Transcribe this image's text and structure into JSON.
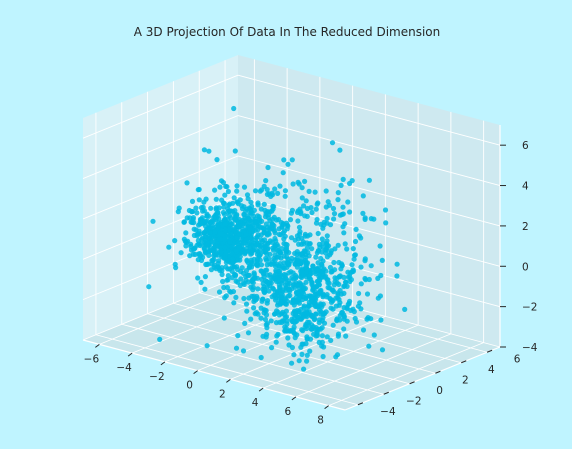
{
  "chart_data": {
    "type": "scatter",
    "projection": "3d",
    "title": "A 3D Projection Of Data In The Reduced Dimension",
    "xlabel": "",
    "ylabel": "",
    "zlabel": "",
    "xlim": [
      -7,
      9
    ],
    "ylim": [
      -5,
      7
    ],
    "zlim": [
      -4,
      7
    ],
    "x_ticks": [
      -6,
      -4,
      -2,
      0,
      2,
      4,
      6,
      8
    ],
    "y_ticks": [
      -4,
      -2,
      0,
      2,
      4,
      6
    ],
    "z_ticks": [
      -4,
      -2,
      0,
      2,
      4,
      6
    ],
    "grid": true,
    "legend": "none",
    "colors": {
      "background": "#bff4ff",
      "pane_left": "#d8f1f7",
      "pane_right": "#cee9f0",
      "pane_floor": "#c8e6ec",
      "grid": "#ffffff",
      "marker": "#00b8e0"
    },
    "clusters": [
      {
        "center": [
          -3.5,
          2.0,
          0.0
        ],
        "spread": [
          1.0,
          1.0,
          0.9
        ],
        "count": 650
      },
      {
        "center": [
          3.0,
          -1.0,
          -0.5
        ],
        "spread": [
          1.6,
          1.3,
          1.2
        ],
        "count": 650
      },
      {
        "center": [
          0.0,
          2.0,
          1.0
        ],
        "spread": [
          2.3,
          1.8,
          1.3
        ],
        "count": 300
      }
    ],
    "outliers": [
      [
        -4.5,
        3.5,
        5.8
      ],
      [
        -5.5,
        2.5,
        3.8
      ],
      [
        -4.8,
        4.0,
        3.5
      ],
      [
        0.8,
        5.0,
        4.5
      ],
      [
        4.5,
        -2.5,
        -3.6
      ],
      [
        6.0,
        -3.0,
        -2.0
      ],
      [
        -3.5,
        -3.5,
        -3.6
      ],
      [
        -1.0,
        -3.0,
        -3.5
      ]
    ]
  }
}
